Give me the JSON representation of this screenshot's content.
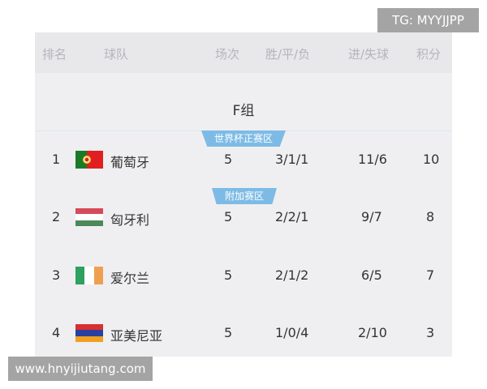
{
  "watermark_top": "TG: MYYJJPP",
  "watermark_bottom": "www.hnyijiutang.com",
  "headers": {
    "rank": "排名",
    "team": "球队",
    "played": "场次",
    "wdl": "胜/平/负",
    "goals": "进/失球",
    "points": "积分"
  },
  "group_title": "F组",
  "zones": {
    "qualify": "世界杯正赛区",
    "playoff": "附加赛区"
  },
  "zone_color": "#7dbbe6",
  "rows": [
    {
      "rank": "1",
      "team": "葡萄牙",
      "flag": "portugal-flag",
      "played": "5",
      "wdl": "3/1/1",
      "goals": "11/6",
      "points": "10"
    },
    {
      "rank": "2",
      "team": "匈牙利",
      "flag": "hungary-flag",
      "played": "5",
      "wdl": "2/2/1",
      "goals": "9/7",
      "points": "8"
    },
    {
      "rank": "3",
      "team": "爱尔兰",
      "flag": "ireland-flag",
      "played": "5",
      "wdl": "2/1/2",
      "goals": "6/5",
      "points": "7"
    },
    {
      "rank": "4",
      "team": "亚美尼亚",
      "flag": "armenia-flag",
      "played": "5",
      "wdl": "1/0/4",
      "goals": "2/10",
      "points": "3"
    }
  ]
}
